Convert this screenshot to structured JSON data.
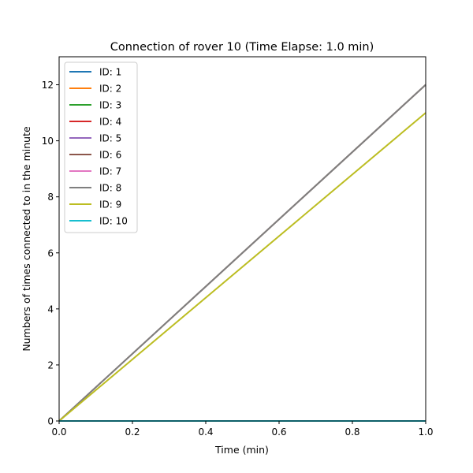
{
  "chart_data": {
    "type": "line",
    "title": "Connection of rover 10 (Time Elapse: 1.0 min)",
    "xlabel": "Time (min)",
    "ylabel": "Numbers of times connected to in the minute",
    "xlim": [
      0.0,
      1.0
    ],
    "ylim": [
      0,
      13
    ],
    "xticks": [
      "0.0",
      "0.2",
      "0.4",
      "0.6",
      "0.8",
      "1.0"
    ],
    "yticks": [
      "0",
      "2",
      "4",
      "6",
      "8",
      "10",
      "12"
    ],
    "x": [
      0.0,
      1.0
    ],
    "grid": false,
    "legend_position": "upper-left",
    "series": [
      {
        "name": "ID: 1",
        "color": "#1f77b4",
        "values": [
          0,
          0
        ]
      },
      {
        "name": "ID: 2",
        "color": "#ff7f0e",
        "values": [
          0,
          0
        ]
      },
      {
        "name": "ID: 3",
        "color": "#2ca02c",
        "values": [
          0,
          0
        ]
      },
      {
        "name": "ID: 4",
        "color": "#d62728",
        "values": [
          0,
          0
        ]
      },
      {
        "name": "ID: 5",
        "color": "#9467bd",
        "values": [
          0,
          0
        ]
      },
      {
        "name": "ID: 6",
        "color": "#8c564b",
        "values": [
          0,
          12
        ]
      },
      {
        "name": "ID: 7",
        "color": "#e377c2",
        "values": [
          0,
          0
        ]
      },
      {
        "name": "ID: 8",
        "color": "#7f7f7f",
        "values": [
          0,
          12
        ]
      },
      {
        "name": "ID: 9",
        "color": "#bcbd22",
        "values": [
          0,
          11
        ]
      },
      {
        "name": "ID: 10",
        "color": "#17becf",
        "values": [
          0,
          0
        ]
      }
    ]
  }
}
